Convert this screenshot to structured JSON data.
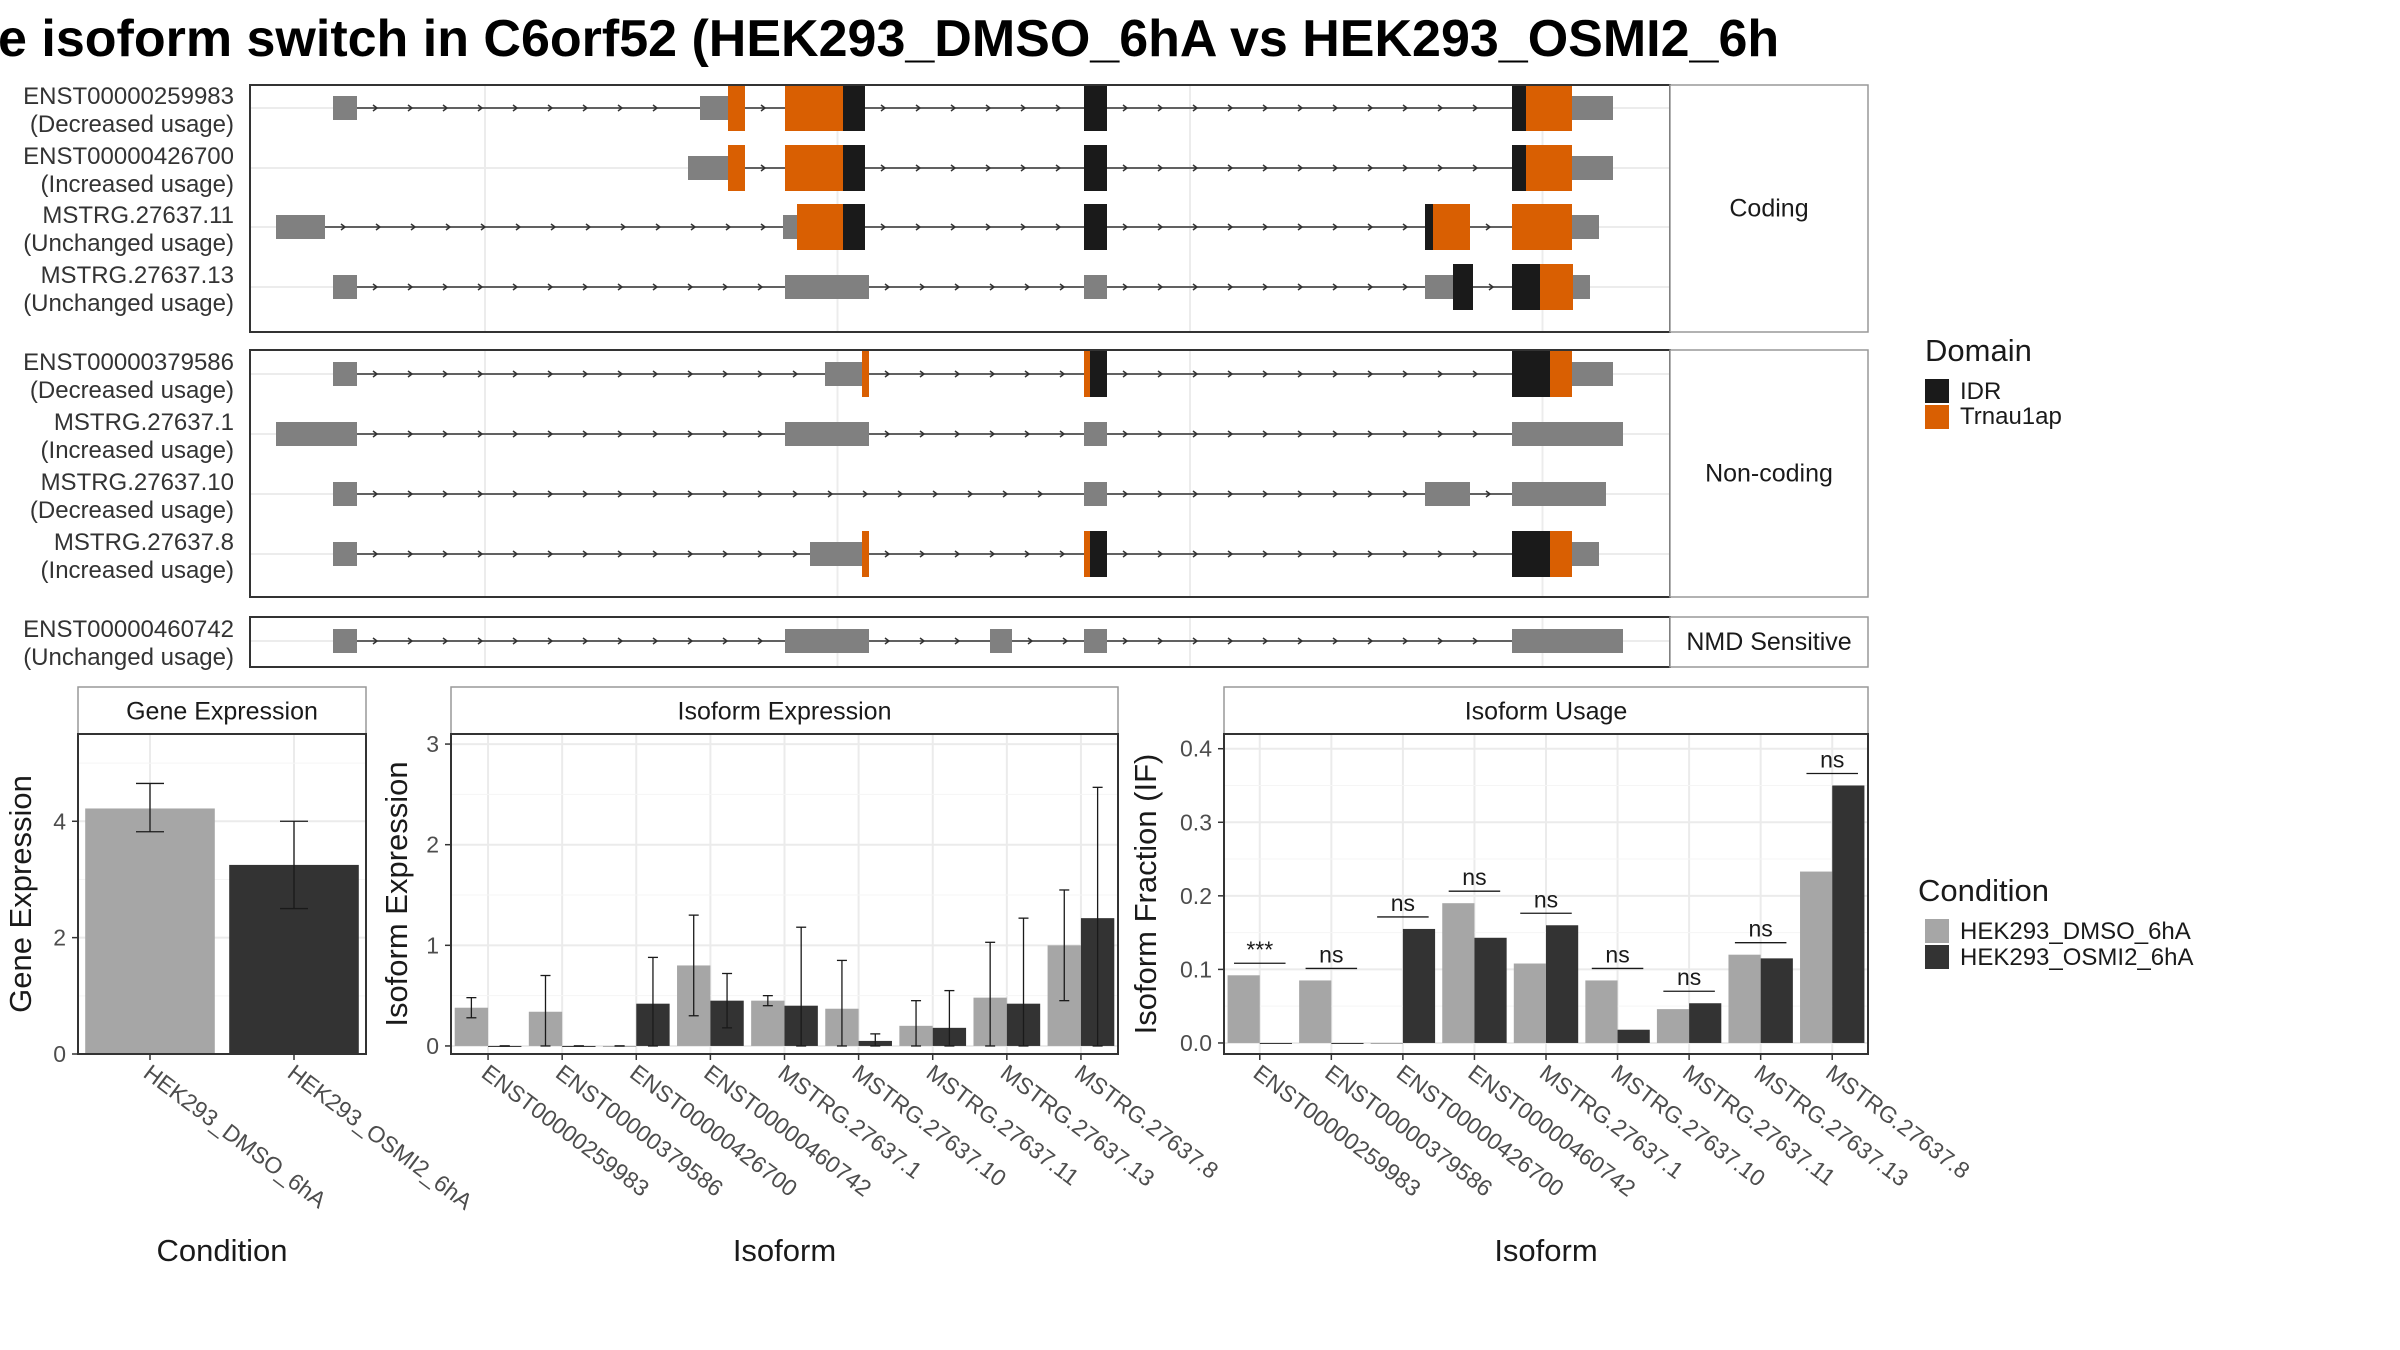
{
  "title": "e isoform switch in C6orf52 (HEK293_DMSO_6hA vs HEK293_OSMI2_6h",
  "colors": {
    "idr": "#1a1a1a",
    "trnau1ap": "#d95f02",
    "exon": "#808080",
    "dmso": "#a6a6a6",
    "osmi2": "#333333"
  },
  "structure": {
    "panels": [
      {
        "label": "Coding",
        "transcripts": [
          {
            "id": "ENST00000259983",
            "usage": "(Decreased usage)",
            "exons": [
              [
                83,
                107,
                "exon"
              ],
              [
                450,
                478,
                "exon"
              ],
              [
                478,
                495,
                "trnau1ap"
              ],
              [
                535,
                593,
                "trnau1ap"
              ],
              [
                593,
                615,
                "idr"
              ],
              [
                834,
                857,
                "idr"
              ],
              [
                1262,
                1276,
                "idr"
              ],
              [
                1276,
                1322,
                "trnau1ap"
              ],
              [
                1322,
                1363,
                "exon"
              ]
            ]
          },
          {
            "id": "ENST00000426700",
            "usage": "(Increased usage)",
            "exons": [
              [
                438,
                478,
                "exon"
              ],
              [
                478,
                495,
                "trnau1ap"
              ],
              [
                535,
                593,
                "trnau1ap"
              ],
              [
                593,
                615,
                "idr"
              ],
              [
                834,
                857,
                "idr"
              ],
              [
                1262,
                1276,
                "idr"
              ],
              [
                1276,
                1322,
                "trnau1ap"
              ],
              [
                1322,
                1363,
                "exon"
              ]
            ]
          },
          {
            "id": "MSTRG.27637.11",
            "usage": "(Unchanged usage)",
            "exons": [
              [
                26,
                75,
                "exon"
              ],
              [
                533,
                547,
                "exon"
              ],
              [
                547,
                593,
                "trnau1ap"
              ],
              [
                593,
                615,
                "idr"
              ],
              [
                834,
                857,
                "idr"
              ],
              [
                1175,
                1183,
                "idr"
              ],
              [
                1183,
                1220,
                "trnau1ap"
              ],
              [
                1262,
                1322,
                "trnau1ap"
              ],
              [
                1322,
                1349,
                "exon"
              ]
            ]
          },
          {
            "id": "MSTRG.27637.13",
            "usage": "(Unchanged usage)",
            "exons": [
              [
                83,
                107,
                "exon"
              ],
              [
                535,
                619,
                "exon"
              ],
              [
                834,
                857,
                "exon"
              ],
              [
                1175,
                1203,
                "exon"
              ],
              [
                1203,
                1223,
                "idr"
              ],
              [
                1262,
                1290,
                "idr"
              ],
              [
                1290,
                1323,
                "trnau1ap"
              ],
              [
                1323,
                1340,
                "exon"
              ]
            ]
          }
        ]
      },
      {
        "label": "Non-coding",
        "transcripts": [
          {
            "id": "ENST00000379586",
            "usage": "(Decreased usage)",
            "exons": [
              [
                83,
                107,
                "exon"
              ],
              [
                575,
                612,
                "exon"
              ],
              [
                612,
                619,
                "trnau1ap"
              ],
              [
                834,
                840,
                "trnau1ap"
              ],
              [
                840,
                857,
                "idr"
              ],
              [
                1262,
                1300,
                "idr"
              ],
              [
                1300,
                1322,
                "trnau1ap"
              ],
              [
                1322,
                1363,
                "exon"
              ]
            ]
          },
          {
            "id": "MSTRG.27637.1",
            "usage": "(Increased usage)",
            "exons": [
              [
                26,
                107,
                "exon"
              ],
              [
                535,
                619,
                "exon"
              ],
              [
                834,
                857,
                "exon"
              ],
              [
                1262,
                1373,
                "exon"
              ]
            ]
          },
          {
            "id": "MSTRG.27637.10",
            "usage": "(Decreased usage)",
            "exons": [
              [
                83,
                107,
                "exon"
              ],
              [
                834,
                857,
                "exon"
              ],
              [
                1175,
                1220,
                "exon"
              ],
              [
                1262,
                1356,
                "exon"
              ]
            ]
          },
          {
            "id": "MSTRG.27637.8",
            "usage": "(Increased usage)",
            "exons": [
              [
                83,
                107,
                "exon"
              ],
              [
                560,
                612,
                "exon"
              ],
              [
                612,
                619,
                "trnau1ap"
              ],
              [
                834,
                840,
                "trnau1ap"
              ],
              [
                840,
                857,
                "idr"
              ],
              [
                1262,
                1300,
                "idr"
              ],
              [
                1300,
                1322,
                "trnau1ap"
              ],
              [
                1322,
                1349,
                "exon"
              ]
            ]
          }
        ]
      },
      {
        "label": "NMD Sensitive",
        "transcripts": [
          {
            "id": "ENST00000460742",
            "usage": "(Unchanged usage)",
            "exons": [
              [
                83,
                107,
                "exon"
              ],
              [
                535,
                619,
                "exon"
              ],
              [
                740,
                762,
                "exon"
              ],
              [
                834,
                857,
                "exon"
              ],
              [
                1262,
                1373,
                "exon"
              ]
            ]
          }
        ]
      }
    ]
  },
  "legend_domain": {
    "title": "Domain",
    "items": [
      "IDR",
      "Trnau1ap"
    ]
  },
  "legend_condition": {
    "title": "Condition",
    "items": [
      "HEK293_DMSO_6hA",
      "HEK293_OSMI2_6hA"
    ]
  },
  "chart_data": [
    {
      "type": "bar",
      "title": "Gene Expression",
      "xlabel": "Condition",
      "ylabel": "Gene Expression",
      "ylim": [
        0,
        5.5
      ],
      "yticks": [
        0,
        2,
        4
      ],
      "categories": [
        "HEK293_DMSO_6hA",
        "HEK293_OSMI2_6hA"
      ],
      "values": [
        4.22,
        3.25
      ],
      "errors": [
        [
          3.82,
          4.65
        ],
        [
          2.5,
          4.0
        ]
      ]
    },
    {
      "type": "bar",
      "title": "Isoform Expression",
      "xlabel": "Isoform",
      "ylabel": "Isoform Expression",
      "ylim": [
        -0.08,
        3.1
      ],
      "yticks": [
        0,
        1,
        2,
        3
      ],
      "categories": [
        "ENST00000259983",
        "ENST00000379586",
        "ENST00000426700",
        "ENST00000460742",
        "MSTRG.27637.1",
        "MSTRG.27637.10",
        "MSTRG.27637.11",
        "MSTRG.27637.13",
        "MSTRG.27637.8"
      ],
      "series": [
        {
          "name": "HEK293_DMSO_6hA",
          "values": [
            0.38,
            0.34,
            0.0,
            0.8,
            0.45,
            0.37,
            0.2,
            0.48,
            1.0
          ],
          "errors": [
            [
              0.28,
              0.48
            ],
            [
              0.0,
              0.7
            ],
            [
              0.0,
              0.0
            ],
            [
              0.3,
              1.3
            ],
            [
              0.4,
              0.5
            ],
            [
              0.0,
              0.85
            ],
            [
              0.0,
              0.45
            ],
            [
              0.0,
              1.03
            ],
            [
              0.45,
              1.55
            ]
          ]
        },
        {
          "name": "HEK293_OSMI2_6hA",
          "values": [
            0.0,
            0.0,
            0.42,
            0.45,
            0.4,
            0.05,
            0.18,
            0.42,
            1.27
          ],
          "errors": [
            [
              0.0,
              0.0
            ],
            [
              0.0,
              0.0
            ],
            [
              0.0,
              0.88
            ],
            [
              0.18,
              0.72
            ],
            [
              0.0,
              1.18
            ],
            [
              0.0,
              0.12
            ],
            [
              0.0,
              0.55
            ],
            [
              0.0,
              1.27
            ],
            [
              0.0,
              2.57
            ]
          ]
        }
      ]
    },
    {
      "type": "bar",
      "title": "Isoform Usage",
      "xlabel": "Isoform",
      "ylabel": "Isoform Fraction (IF)",
      "ylim": [
        -0.015,
        0.42
      ],
      "yticks": [
        0.0,
        0.1,
        0.2,
        0.3,
        0.4
      ],
      "categories": [
        "ENST00000259983",
        "ENST00000379586",
        "ENST00000426700",
        "ENST00000460742",
        "MSTRG.27637.1",
        "MSTRG.27637.10",
        "MSTRG.27637.11",
        "MSTRG.27637.13",
        "MSTRG.27637.8"
      ],
      "series": [
        {
          "name": "HEK293_DMSO_6hA",
          "values": [
            0.092,
            0.085,
            0.0,
            0.19,
            0.108,
            0.085,
            0.046,
            0.12,
            0.233
          ]
        },
        {
          "name": "HEK293_OSMI2_6hA",
          "values": [
            0.0,
            0.0,
            0.155,
            0.143,
            0.16,
            0.018,
            0.054,
            0.115,
            0.35
          ]
        }
      ],
      "annotations": [
        "***",
        "ns",
        "ns",
        "ns",
        "ns",
        "ns",
        "ns",
        "ns",
        "ns"
      ]
    }
  ]
}
